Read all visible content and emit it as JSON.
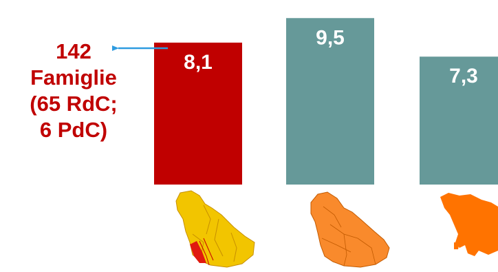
{
  "chart_data": {
    "type": "bar",
    "categories": [
      "",
      "",
      ""
    ],
    "values": [
      8.1,
      9.5,
      7.3
    ],
    "value_labels": [
      "8,1",
      "9,5",
      "7,3"
    ],
    "colors": [
      "#c00000",
      "#669999",
      "#669999"
    ],
    "title": "",
    "xlabel": "",
    "ylabel": "",
    "ylim": [
      0,
      10.1
    ],
    "grid": false,
    "legend": "none",
    "annotation": {
      "lines": [
        "142",
        "Famiglie",
        "(65 RdC;",
        "6 PdC)"
      ],
      "target_bar": 0,
      "arrow_color": "#2e9be0"
    },
    "region_icons": [
      "province-map-icon",
      "district-map-icon",
      "region-map-icon"
    ]
  }
}
